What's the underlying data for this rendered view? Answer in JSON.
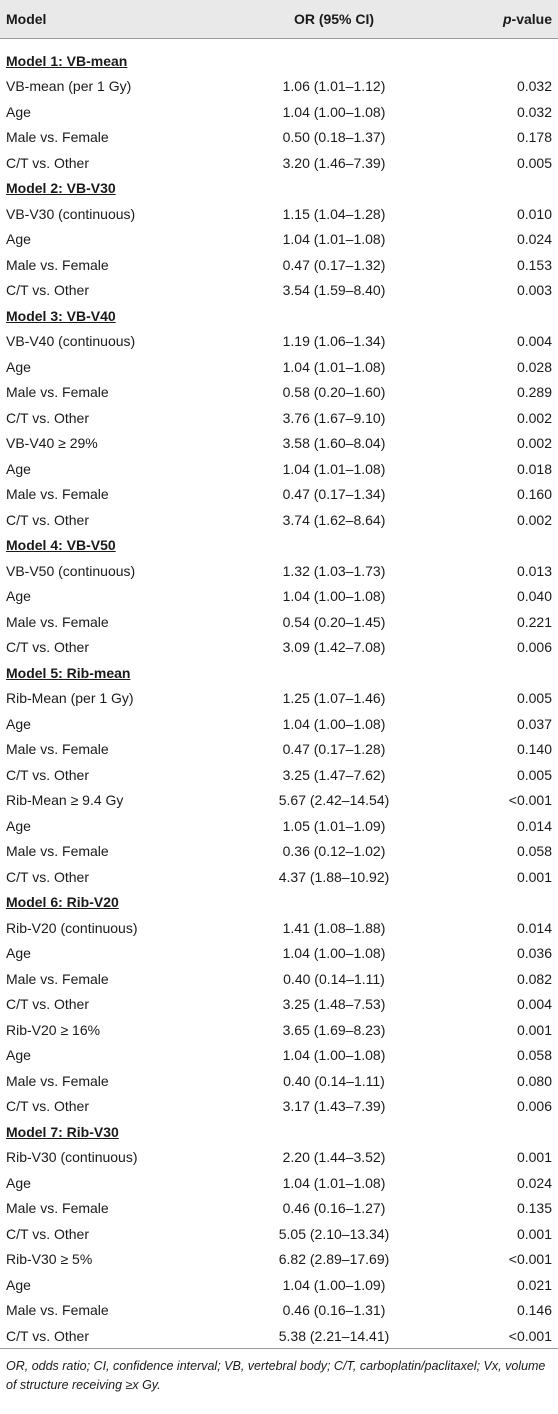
{
  "header": {
    "model": "Model",
    "or": "OR (95% CI)",
    "p_italic": "p",
    "p_rest": "-value"
  },
  "models": [
    {
      "title": "Model 1: VB-mean",
      "rows": [
        [
          "VB-mean (per 1 Gy)",
          "1.06 (1.01–1.12)",
          "0.032"
        ],
        [
          "Age",
          "1.04 (1.00–1.08)",
          "0.032"
        ],
        [
          "Male vs. Female",
          "0.50 (0.18–1.37)",
          "0.178"
        ],
        [
          "C/T vs. Other",
          "3.20 (1.46–7.39)",
          "0.005"
        ]
      ]
    },
    {
      "title": "Model 2: VB-V30",
      "rows": [
        [
          "VB-V30 (continuous)",
          "1.15 (1.04–1.28)",
          "0.010"
        ],
        [
          "Age",
          "1.04 (1.01–1.08)",
          "0.024"
        ],
        [
          "Male vs. Female",
          "0.47 (0.17–1.32)",
          "0.153"
        ],
        [
          "C/T vs. Other",
          "3.54 (1.59–8.40)",
          "0.003"
        ]
      ]
    },
    {
      "title": "Model 3: VB-V40",
      "rows": [
        [
          "VB-V40 (continuous)",
          "1.19 (1.06–1.34)",
          "0.004"
        ],
        [
          "Age",
          "1.04 (1.01–1.08)",
          "0.028"
        ],
        [
          "Male vs. Female",
          "0.58 (0.20–1.60)",
          "0.289"
        ],
        [
          "C/T vs. Other",
          "3.76 (1.67–9.10)",
          "0.002"
        ],
        [
          "VB-V40 ≥ 29%",
          "3.58 (1.60–8.04)",
          "0.002"
        ],
        [
          "Age",
          "1.04 (1.01–1.08)",
          "0.018"
        ],
        [
          "Male vs. Female",
          "0.47 (0.17–1.34)",
          "0.160"
        ],
        [
          "C/T vs. Other",
          "3.74 (1.62–8.64)",
          "0.002"
        ]
      ]
    },
    {
      "title": "Model 4: VB-V50",
      "rows": [
        [
          "VB-V50 (continuous)",
          "1.32 (1.03–1.73)",
          "0.013"
        ],
        [
          "Age",
          "1.04 (1.00–1.08)",
          "0.040"
        ],
        [
          "Male vs. Female",
          "0.54 (0.20–1.45)",
          "0.221"
        ],
        [
          "C/T vs. Other",
          "3.09 (1.42–7.08)",
          "0.006"
        ]
      ]
    },
    {
      "title": "Model 5: Rib-mean",
      "rows": [
        [
          "Rib-Mean (per 1 Gy)",
          "1.25 (1.07–1.46)",
          "0.005"
        ],
        [
          "Age",
          "1.04 (1.00–1.08)",
          "0.037"
        ],
        [
          "Male vs. Female",
          "0.47 (0.17–1.28)",
          "0.140"
        ],
        [
          "C/T vs. Other",
          "3.25 (1.47–7.62)",
          "0.005"
        ],
        [
          "Rib-Mean ≥ 9.4 Gy",
          "5.67 (2.42–14.54)",
          "<0.001"
        ],
        [
          "Age",
          "1.05 (1.01–1.09)",
          "0.014"
        ],
        [
          "Male vs. Female",
          "0.36 (0.12–1.02)",
          "0.058"
        ],
        [
          "C/T vs. Other",
          "4.37 (1.88–10.92)",
          "0.001"
        ]
      ]
    },
    {
      "title": "Model 6: Rib-V20",
      "rows": [
        [
          "Rib-V20 (continuous)",
          "1.41 (1.08–1.88)",
          "0.014"
        ],
        [
          "Age",
          "1.04 (1.00–1.08)",
          "0.036"
        ],
        [
          "Male vs. Female",
          "0.40 (0.14–1.11)",
          "0.082"
        ],
        [
          "C/T vs. Other",
          "3.25 (1.48–7.53)",
          "0.004"
        ],
        [
          "Rib-V20 ≥ 16%",
          "3.65 (1.69–8.23)",
          "0.001"
        ],
        [
          "Age",
          "1.04 (1.00–1.08)",
          "0.058"
        ],
        [
          "Male vs. Female",
          "0.40 (0.14–1.11)",
          "0.080"
        ],
        [
          "C/T vs. Other",
          "3.17 (1.43–7.39)",
          "0.006"
        ]
      ]
    },
    {
      "title": "Model 7: Rib-V30",
      "rows": [
        [
          "Rib-V30 (continuous)",
          "2.20 (1.44–3.52)",
          "0.001"
        ],
        [
          "Age",
          "1.04 (1.01–1.08)",
          "0.024"
        ],
        [
          "Male vs. Female",
          "0.46 (0.16–1.27)",
          "0.135"
        ],
        [
          "C/T vs. Other",
          "5.05 (2.10–13.34)",
          "0.001"
        ],
        [
          "Rib-V30 ≥ 5%",
          "6.82 (2.89–17.69)",
          "<0.001"
        ],
        [
          "Age",
          "1.04 (1.00–1.09)",
          "0.021"
        ],
        [
          "Male vs. Female",
          "0.46 (0.16–1.31)",
          "0.146"
        ],
        [
          "C/T vs. Other",
          "5.38 (2.21–14.41)",
          "<0.001"
        ]
      ]
    }
  ],
  "footnote": "OR, odds ratio; CI, confidence interval; VB, vertebral body; C/T, carboplatin/paclitaxel; Vx, volume of structure receiving ≥x Gy."
}
